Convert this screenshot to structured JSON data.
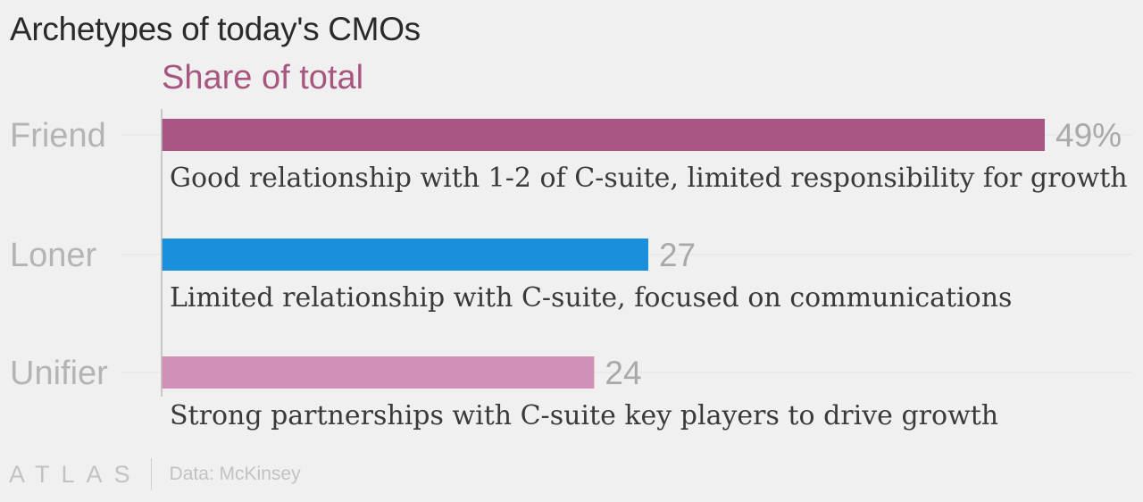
{
  "chart_data": {
    "type": "bar",
    "orientation": "horizontal",
    "title": "Archetypes of today's CMOs",
    "subtitle": "Share of total",
    "categories": [
      "Friend",
      "Loner",
      "Unifier"
    ],
    "values": [
      49,
      27,
      24
    ],
    "value_labels": [
      "49%",
      "27",
      "24"
    ],
    "descriptions": [
      "Good relationship with 1-2 of C-suite, limited responsibility for growth",
      "Limited relationship with C-suite, focused on communications",
      "Strong partnerships with C-suite key players to drive growth"
    ],
    "colors": [
      "#a85683",
      "#1a8fdc",
      "#d190b7"
    ],
    "xlim": [
      0,
      49
    ],
    "grid": false
  },
  "footer": {
    "logo": "ATLAS",
    "source": "Data: McKinsey"
  }
}
